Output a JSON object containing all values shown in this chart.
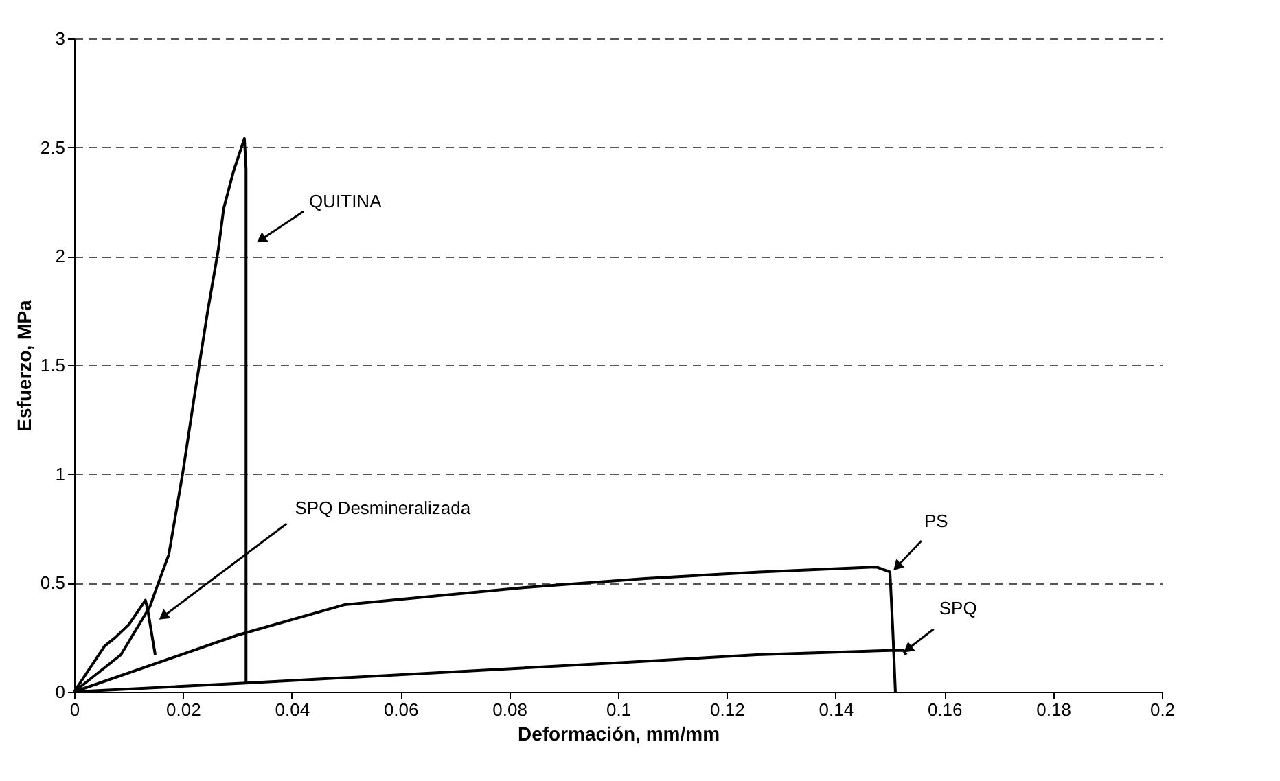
{
  "chart_data": {
    "type": "line",
    "xlabel": "Deformación, mm/mm",
    "ylabel": "Esfuerzo, MPa",
    "xlim": [
      0,
      0.2
    ],
    "xticks": [
      0,
      0.02,
      0.04,
      0.06,
      0.08,
      0.1,
      0.12,
      0.14,
      0.16,
      0.18,
      0.2
    ],
    "ylim": [
      0,
      3
    ],
    "yticks": [
      0,
      0.5,
      1,
      1.5,
      2,
      2.5,
      3
    ],
    "grid": "y",
    "marker": "none",
    "line_style": "solid",
    "series": [
      {
        "color": "#000000",
        "x": [
          0,
          0.0086,
          0.0139,
          0.0152,
          0.0174,
          0.02,
          0.022,
          0.0245,
          0.0265,
          0.0275,
          0.0293,
          0.0313,
          0.0316,
          0.0316
        ],
        "values": [
          0,
          0.17,
          0.39,
          0.48,
          0.63,
          1.01,
          1.34,
          1.74,
          2.03,
          2.22,
          2.39,
          2.54,
          2.4,
          0.04
        ]
      },
      {
        "color": "#000000",
        "x": [
          0,
          0.0056,
          0.0076,
          0.0101,
          0.0131,
          0.0135,
          0.0149
        ],
        "values": [
          0,
          0.21,
          0.25,
          0.31,
          0.42,
          0.38,
          0.17
        ]
      },
      {
        "color": "#000000",
        "x": [
          0,
          0.03,
          0.0497,
          0.0833,
          0.105,
          0.126,
          0.1475,
          0.15,
          0.1505,
          0.151
        ],
        "values": [
          0,
          0.26,
          0.4,
          0.48,
          0.52,
          0.55,
          0.573,
          0.55,
          0.3,
          0
        ]
      },
      {
        "color": "#000000",
        "x": [
          0,
          0.0316,
          0.105,
          0.1255,
          0.15,
          0.1525,
          0.153
        ],
        "values": [
          0,
          0.04,
          0.14,
          0.17,
          0.19,
          0.19,
          0.17
        ]
      }
    ],
    "annotations": [
      {
        "text": "QUITINA",
        "x": 0.0346,
        "y": 2.08
      },
      {
        "text": "SPQ Desmineralizada",
        "x": 0.0166,
        "y": 0.35
      },
      {
        "text": "PS",
        "x": 0.1515,
        "y": 0.58
      },
      {
        "text": "SPQ",
        "x": 0.1535,
        "y": 0.2
      }
    ]
  }
}
